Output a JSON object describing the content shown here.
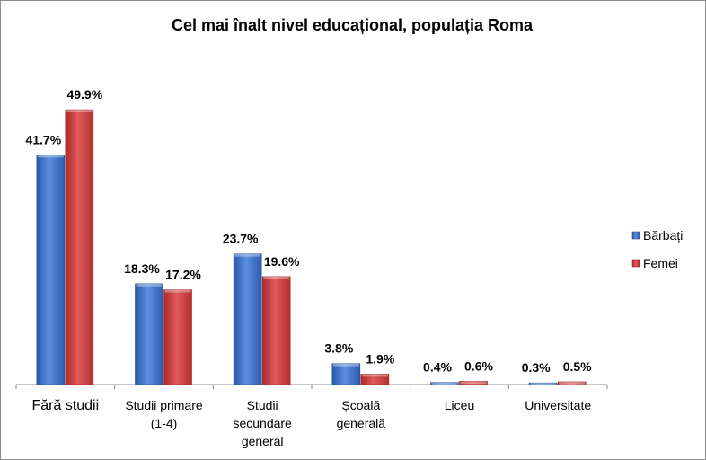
{
  "chart_data": {
    "type": "bar",
    "title": "Cel mai înalt nivel educațional, populația Roma",
    "categories": [
      [
        "Fără studii"
      ],
      [
        "Studii primare",
        "(1-4)"
      ],
      [
        "Studii",
        "secundare",
        "general"
      ],
      [
        "Școală",
        "generală"
      ],
      [
        "Liceu"
      ],
      [
        "Universitate"
      ]
    ],
    "series": [
      {
        "name": "Bărbați",
        "values": [
          41.7,
          18.3,
          23.7,
          3.8,
          0.4,
          0.3
        ],
        "labels": [
          "41.7%",
          "18.3%",
          "23.7%",
          "3.8%",
          "0.4%",
          "0.3%"
        ],
        "color": "#3a6fc4"
      },
      {
        "name": "Femei",
        "values": [
          49.9,
          17.2,
          19.6,
          1.9,
          0.6,
          0.5
        ],
        "labels": [
          "49.9%",
          "17.2%",
          "19.6%",
          "1.9%",
          "0.6%",
          "0.5%"
        ],
        "color": "#cc3b3b"
      }
    ],
    "ylim": [
      0,
      50
    ],
    "grid": false,
    "legend_position": "right"
  }
}
